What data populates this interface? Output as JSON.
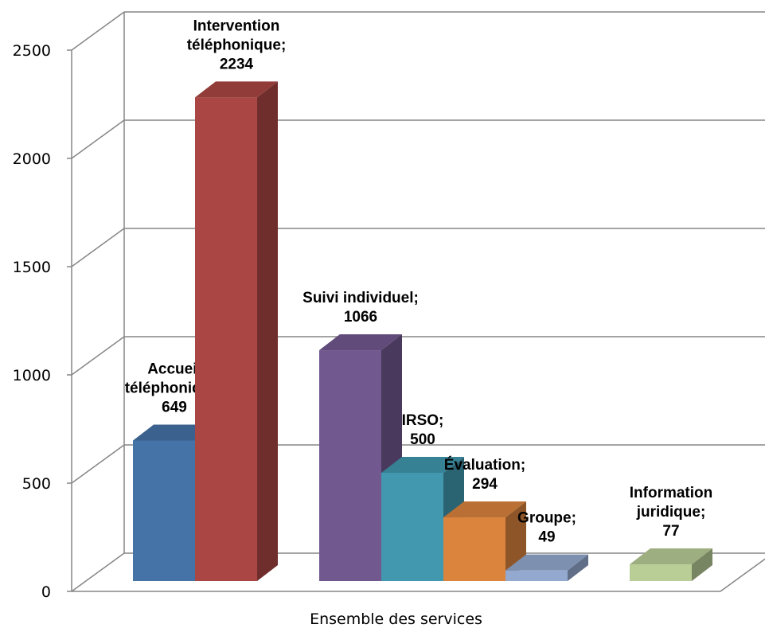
{
  "chart_data": {
    "type": "bar",
    "title": "",
    "xlabel": "Ensemble des services",
    "ylabel": "",
    "ylim": [
      0,
      2500
    ],
    "yticks": [
      0,
      500,
      1000,
      1500,
      2000,
      2500
    ],
    "grid": true,
    "legend": "none",
    "style": "3d-clustered-columns",
    "categories": [
      "Ensemble des services"
    ],
    "series": [
      {
        "name": "Accueil téléphonique",
        "value": 649,
        "label_lines": [
          "Accueil",
          "téléphonique;",
          "649"
        ],
        "color": "#4572A7"
      },
      {
        "name": "Intervention téléphonique",
        "value": 2234,
        "label_lines": [
          "Intervention",
          "téléphonique;",
          "2234"
        ],
        "color": "#AA4643"
      },
      {
        "name": "",
        "value": null,
        "label_lines": [],
        "color": "#89A54E"
      },
      {
        "name": "Suivi individuel",
        "value": 1066,
        "label_lines": [
          "Suivi individuel;",
          "1066"
        ],
        "color": "#71588F"
      },
      {
        "name": "IRSO",
        "value": 500,
        "label_lines": [
          "IRSO;",
          "500"
        ],
        "color": "#4198AF"
      },
      {
        "name": "Évaluation",
        "value": 294,
        "label_lines": [
          "Évaluation;",
          "294"
        ],
        "color": "#DB843D"
      },
      {
        "name": "Groupe",
        "value": 49,
        "label_lines": [
          "Groupe;",
          "49"
        ],
        "color": "#93A9CF"
      },
      {
        "name": "",
        "value": null,
        "label_lines": [],
        "color": "#D19392"
      },
      {
        "name": "Information juridique",
        "value": 77,
        "label_lines": [
          "Information",
          "juridique;",
          "77"
        ],
        "color": "#B9CD96"
      }
    ]
  }
}
